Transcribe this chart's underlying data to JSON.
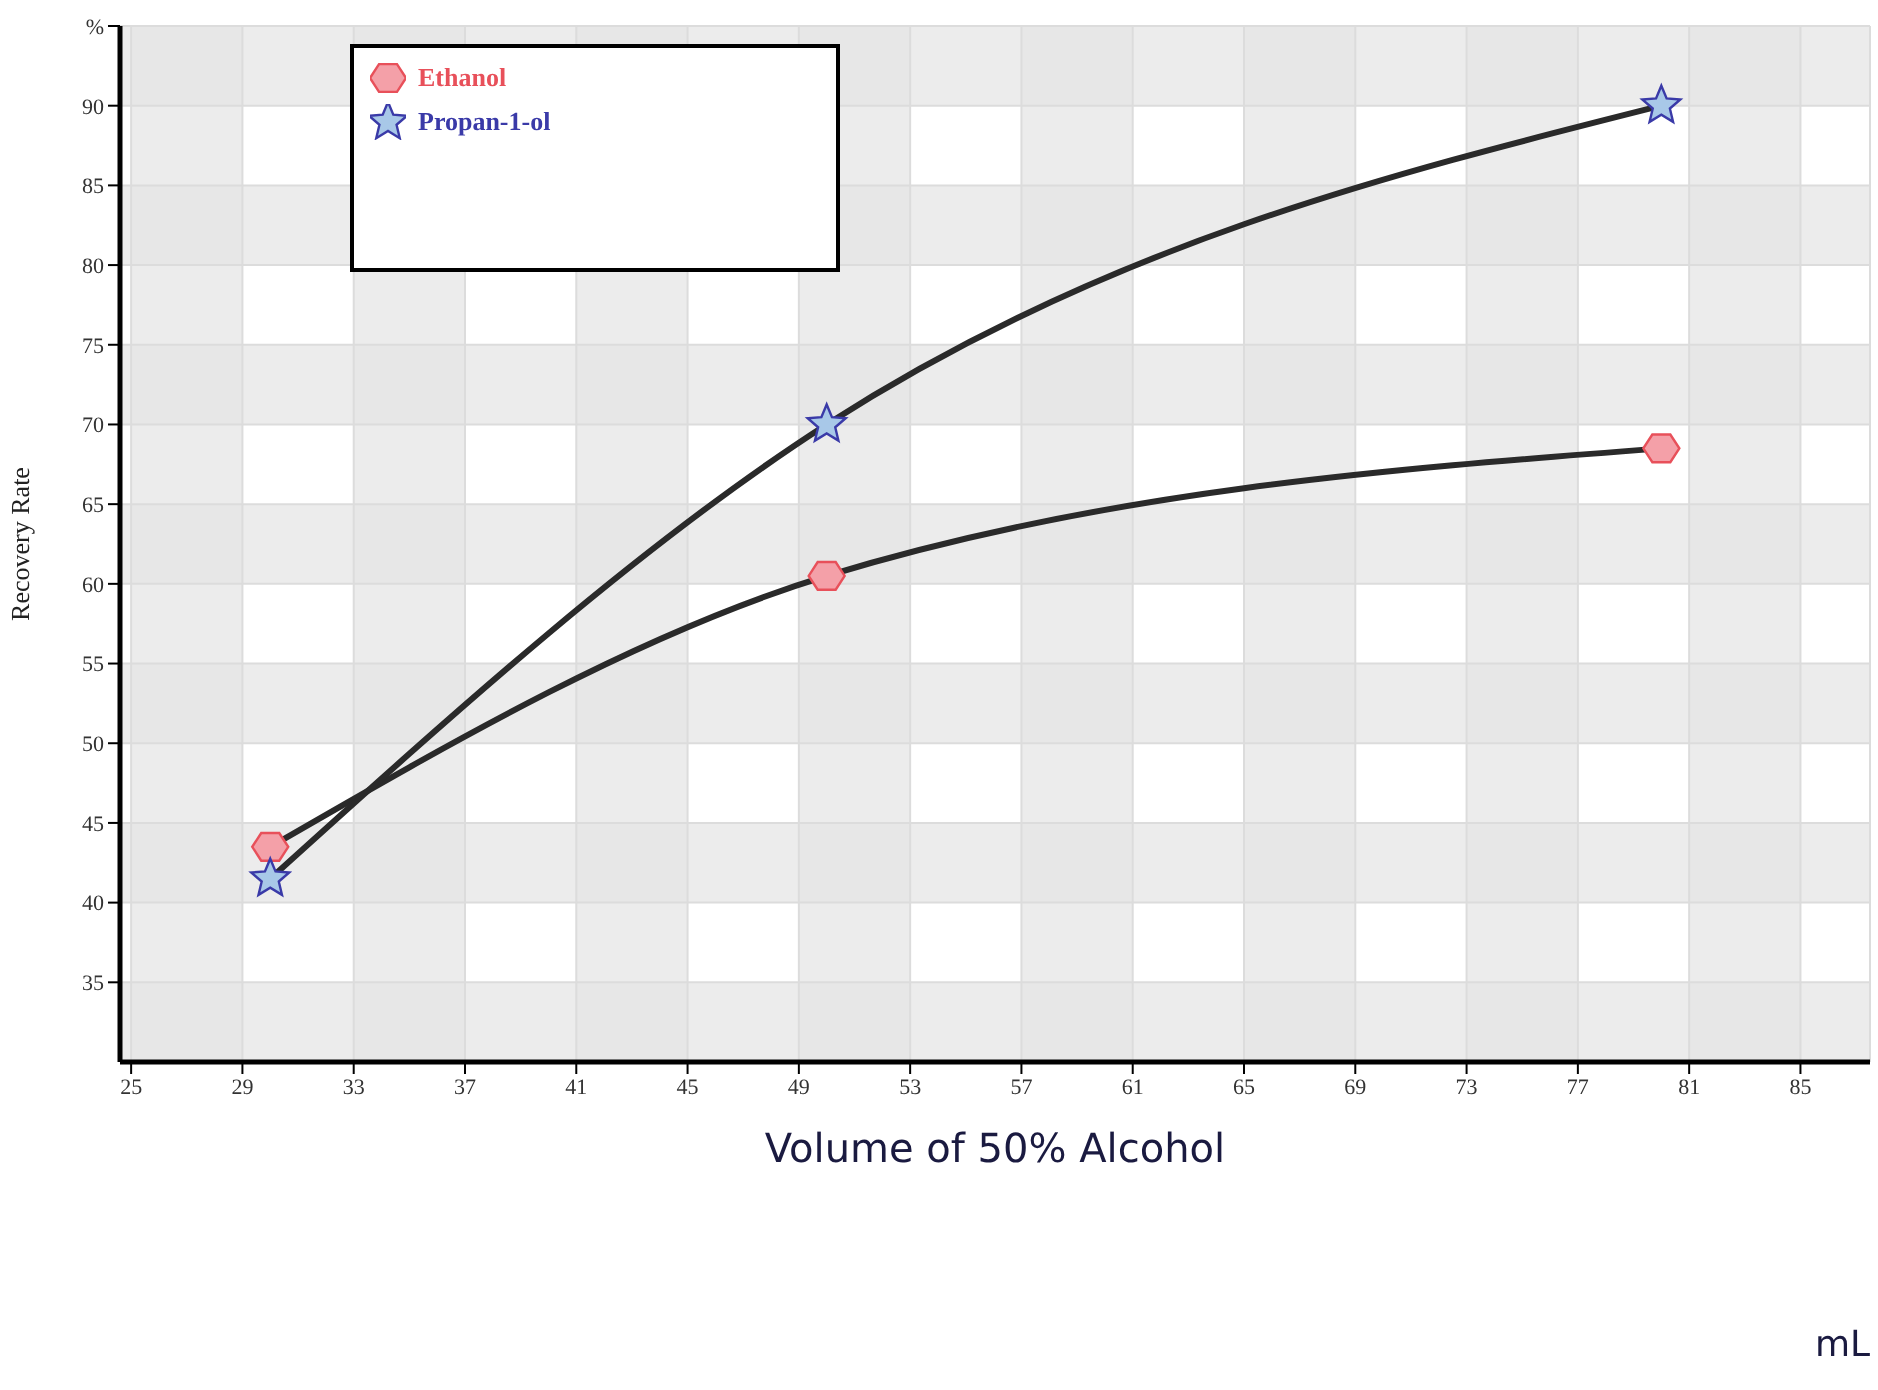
{
  "chart_data": {
    "type": "line",
    "xlabel": "Volume of 50% Alcohol",
    "ylabel": "Recovery Rate",
    "x": [
      30,
      50,
      80
    ],
    "series": [
      {
        "name": "Ethanol",
        "color": "#e8505a",
        "marker": "circle",
        "values": [
          43.5,
          60.5,
          68.5
        ]
      },
      {
        "name": "Propan-1-ol",
        "color": "#3a3aa8",
        "marker": "star",
        "values": [
          41.5,
          70,
          90
        ]
      }
    ],
    "xlim": [
      24.6,
      87.5
    ],
    "xticks": [
      25,
      29,
      33,
      37,
      41,
      45,
      49,
      53,
      57,
      61,
      65,
      69,
      73,
      77,
      81,
      85
    ],
    "ylim": [
      30,
      95
    ],
    "yticks": [
      35,
      40,
      45,
      50,
      55,
      60,
      65,
      70,
      75,
      80,
      85,
      90,
      {
        "value": 95,
        "label": "%"
      }
    ],
    "annotations": [
      "mL"
    ],
    "grid": true,
    "legend": "top left"
  }
}
